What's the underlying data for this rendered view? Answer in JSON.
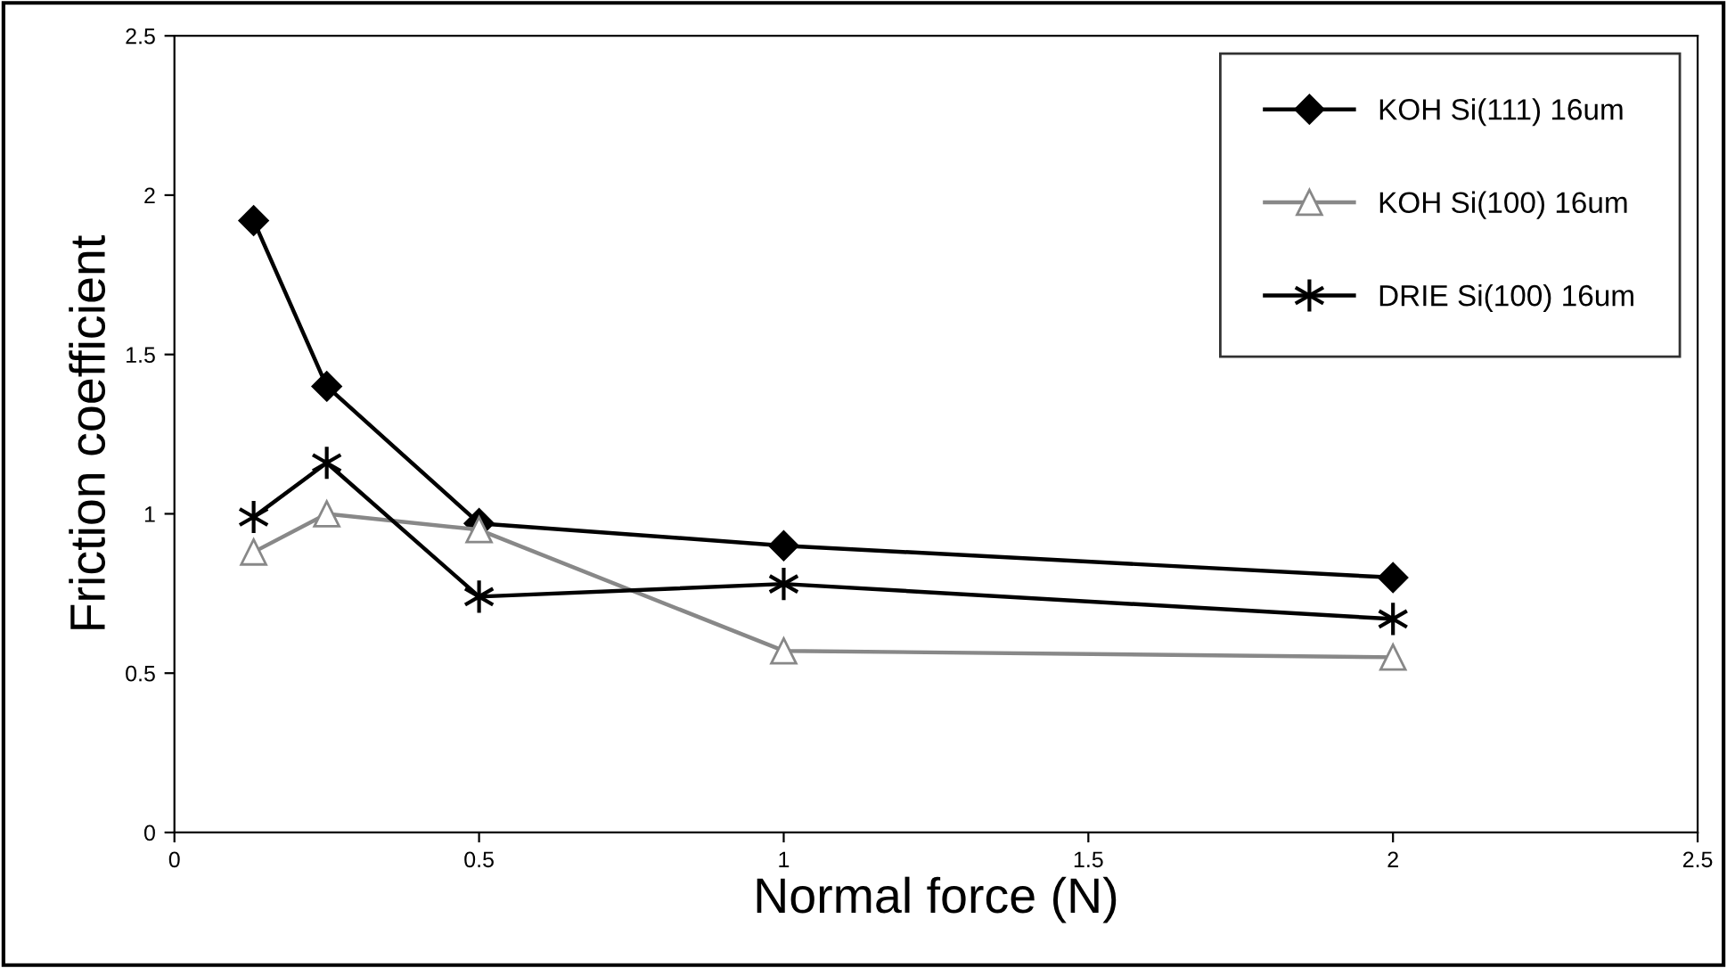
{
  "chart_data": {
    "type": "line",
    "xlabel": "Normal force (N)",
    "ylabel": "Friction coefficient",
    "xlim": [
      0,
      2.5
    ],
    "ylim": [
      0,
      2.5
    ],
    "xticks": [
      0,
      0.5,
      1,
      1.5,
      2,
      2.5
    ],
    "yticks": [
      0,
      0.5,
      1,
      1.5,
      2,
      2.5
    ],
    "x": [
      0.13,
      0.25,
      0.5,
      1,
      2
    ],
    "series": [
      {
        "name": "KOH Si(111) 16um",
        "color": "#000000",
        "marker": "diamond",
        "values": [
          1.92,
          1.4,
          0.97,
          0.9,
          0.8
        ]
      },
      {
        "name": "KOH Si(100) 16um",
        "color": "#888888",
        "marker": "triangle",
        "values": [
          0.88,
          1.0,
          0.95,
          0.57,
          0.55
        ]
      },
      {
        "name": "DRIE Si(100) 16um",
        "color": "#000000",
        "marker": "cross",
        "values": [
          0.99,
          1.16,
          0.74,
          0.78,
          0.67
        ]
      }
    ],
    "legend": "top right",
    "grid": false
  }
}
